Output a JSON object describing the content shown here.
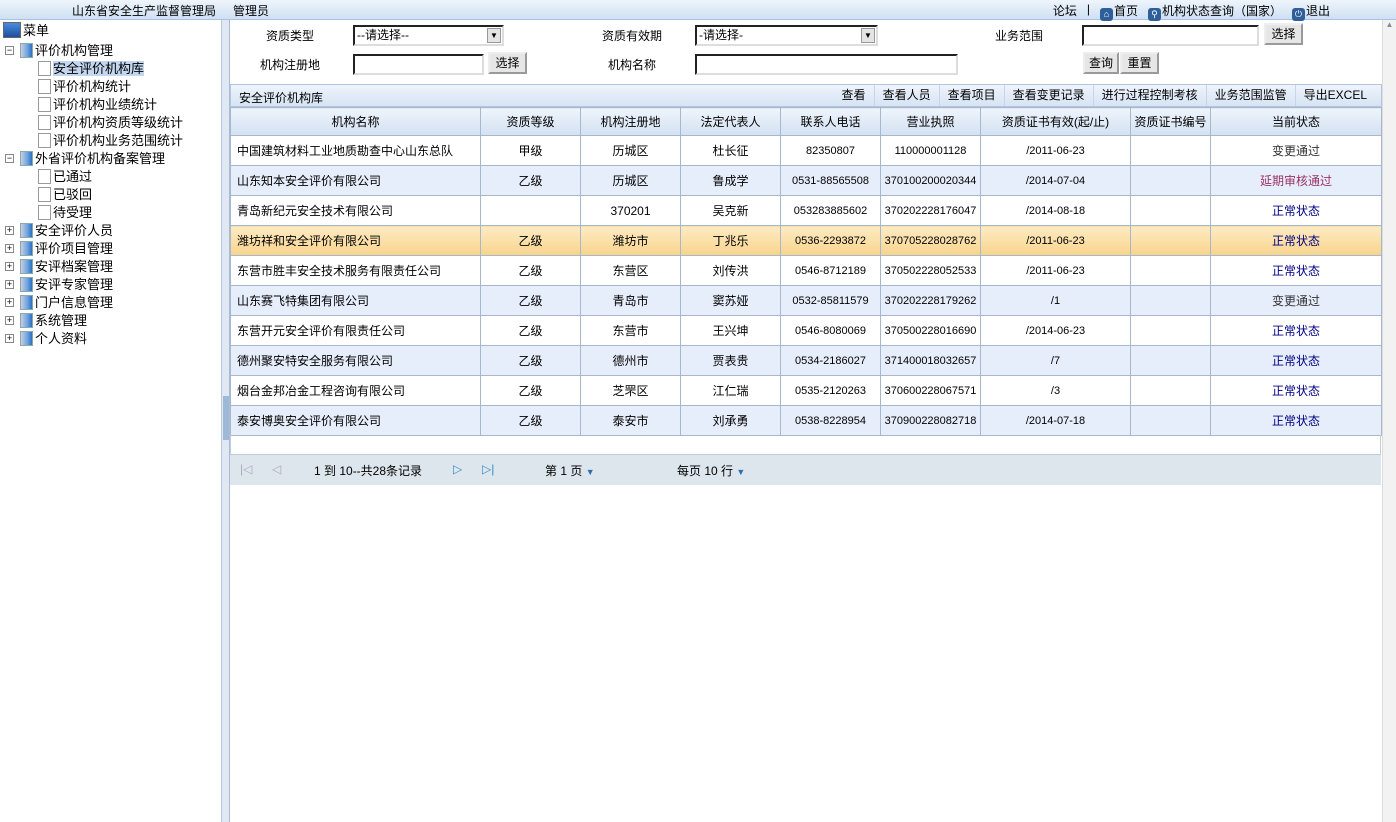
{
  "header": {
    "org": "山东省安全生产监督管理局",
    "user": "管理员",
    "links": {
      "forum": "论坛",
      "sep": "|",
      "home": "首页",
      "status_query": "机构状态查询（国家）",
      "logout": "退出"
    }
  },
  "sidebar": {
    "title": "菜单",
    "groups": [
      {
        "label": "评价机构管理",
        "expanded": true,
        "items": [
          "安全评价机构库",
          "评价机构统计",
          "评价机构业绩统计",
          "评价机构资质等级统计",
          "评价机构业务范围统计"
        ]
      },
      {
        "label": "外省评价机构备案管理",
        "expanded": true,
        "items": [
          "已通过",
          "已驳回",
          "待受理"
        ]
      },
      {
        "label": "安全评价人员"
      },
      {
        "label": "评价项目管理"
      },
      {
        "label": "安评档案管理"
      },
      {
        "label": "安评专家管理"
      },
      {
        "label": "门户信息管理"
      },
      {
        "label": "系统管理"
      },
      {
        "label": "个人资料"
      }
    ],
    "selected": "安全评价机构库"
  },
  "filters": {
    "qual_type_label": "资质类型",
    "qual_type_value": "--请选择--",
    "validity_label": "资质有效期",
    "validity_value": "-请选择-",
    "scope_label": "业务范围",
    "scope_value": "",
    "select_btn": "选择",
    "reg_label": "机构注册地",
    "reg_value": "",
    "name_label": "机构名称",
    "name_value": "",
    "query_btn": "查询",
    "reset_btn": "重置"
  },
  "toolbar": {
    "title": "安全评价机构库",
    "actions": [
      "查看",
      "查看人员",
      "查看项目",
      "查看变更记录",
      "进行过程控制考核",
      "业务范围监管",
      "导出EXCEL"
    ]
  },
  "table": {
    "columns": [
      "机构名称",
      "资质等级",
      "机构注册地",
      "法定代表人",
      "联系人电话",
      "营业执照",
      "资质证书有效(起/止)",
      "资质证书编号",
      "当前状态"
    ],
    "rows": [
      [
        "中国建筑材料工业地质勘查中心山东总队",
        "甲级",
        "历城区",
        "杜长征",
        "82350807",
        "110000001128",
        "/2011-06-23",
        "",
        "变更通过"
      ],
      [
        "山东知本安全评价有限公司",
        "乙级",
        "历城区",
        "鲁成学",
        "0531-88565508",
        "370100200020344",
        "/2014-07-04",
        "",
        "延期审核通过"
      ],
      [
        "青岛新纪元安全技术有限公司",
        "",
        "370201",
        "吴克新",
        "053283885602",
        "370202228176047",
        "/2014-08-18",
        "",
        "正常状态"
      ],
      [
        "潍坊祥和安全评价有限公司",
        "乙级",
        "潍坊市",
        "丁兆乐",
        "0536-2293872",
        "370705228028762",
        "/2011-06-23",
        "",
        "正常状态"
      ],
      [
        "东营市胜丰安全技术服务有限责任公司",
        "乙级",
        "东营区",
        "刘传洪",
        "0546-8712189",
        "370502228052533",
        "/2011-06-23",
        "",
        "正常状态"
      ],
      [
        "山东赛飞特集团有限公司",
        "乙级",
        "青岛市",
        "窦苏娅",
        "0532-85811579",
        "370202228179262",
        "/1",
        "",
        "变更通过"
      ],
      [
        "东营开元安全评价有限责任公司",
        "乙级",
        "东营市",
        "王兴坤",
        "0546-8080069",
        "370500228016690",
        "/2014-06-23",
        "",
        "正常状态"
      ],
      [
        "德州聚安特安全服务有限公司",
        "乙级",
        "德州市",
        "贾表贵",
        "0534-2186027",
        "371400018032657",
        "/7",
        "",
        "正常状态"
      ],
      [
        "烟台金邦冶金工程咨询有限公司",
        "乙级",
        "芝罘区",
        "江仁瑞",
        "0535-2120263",
        "370600228067571",
        "/3",
        "",
        "正常状态"
      ],
      [
        "泰安博奥安全评价有限公司",
        "乙级",
        "泰安市",
        "刘承勇",
        "0538-8228954",
        "370900228082718",
        "/2014-07-18",
        "",
        "正常状态"
      ]
    ],
    "highlighted_row": 3,
    "status_colors": {
      "变更通过": "#333333",
      "延期审核通过": "#993366",
      "正常状态": "#000080"
    }
  },
  "pager": {
    "range": "1 到 10--共28条记录",
    "page": "第 1 页",
    "per_page": "每页 10 行"
  }
}
